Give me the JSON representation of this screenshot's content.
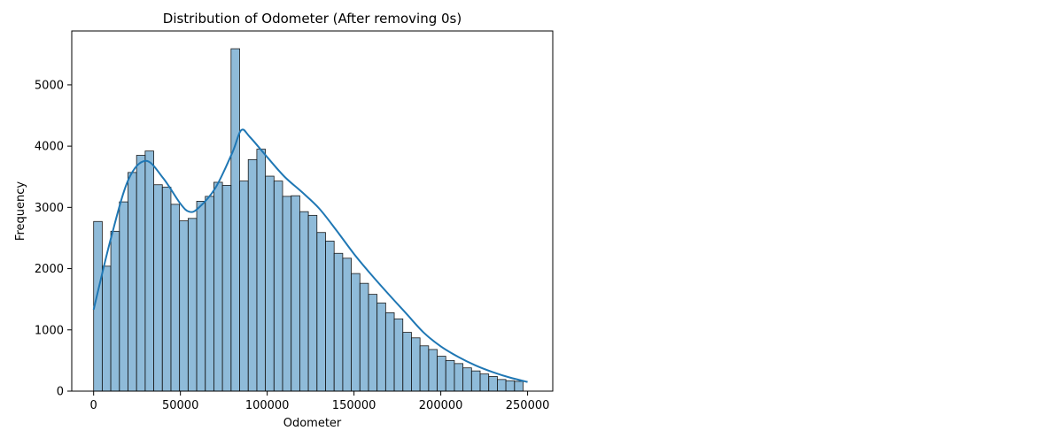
{
  "chart_data": {
    "type": "bar",
    "title": "Distribution of Odometer (After removing 0s)",
    "xlabel": "Odometer",
    "ylabel": "Frequency",
    "xlim": [
      -12600,
      264500
    ],
    "ylim": [
      0,
      5880
    ],
    "xticks": [
      0,
      50000,
      100000,
      150000,
      200000,
      250000
    ],
    "yticks": [
      0,
      1000,
      2000,
      3000,
      4000,
      5000
    ],
    "bin_start": 0,
    "bin_width": 4948,
    "values": [
      2770,
      2040,
      2610,
      3090,
      3570,
      3850,
      3920,
      3370,
      3330,
      3050,
      2780,
      2820,
      3100,
      3180,
      3410,
      3360,
      5590,
      3430,
      3780,
      3950,
      3510,
      3430,
      3180,
      3190,
      2930,
      2870,
      2590,
      2450,
      2250,
      2170,
      1920,
      1760,
      1580,
      1440,
      1280,
      1180,
      960,
      870,
      740,
      680,
      570,
      500,
      450,
      380,
      330,
      280,
      240,
      190,
      170,
      160
    ],
    "kde": {
      "x": [
        0,
        10000,
        20000,
        30000,
        40000,
        50000,
        55000,
        60000,
        70000,
        80000,
        85000,
        90000,
        100000,
        110000,
        120000,
        130000,
        140000,
        150000,
        160000,
        170000,
        180000,
        190000,
        200000,
        210000,
        220000,
        230000,
        240000,
        250000
      ],
      "y": [
        1330,
        2500,
        3450,
        3760,
        3480,
        3060,
        2930,
        2980,
        3310,
        3900,
        4260,
        4150,
        3820,
        3500,
        3250,
        2980,
        2620,
        2240,
        1900,
        1580,
        1270,
        960,
        730,
        560,
        420,
        310,
        220,
        150
      ]
    },
    "colors": {
      "bar_fill": "#1f77b4",
      "bar_fill_opacity": 0.5,
      "bar_edge": "#1a1a1a",
      "kde_line": "#1f77b4",
      "axes": "#000000"
    }
  }
}
